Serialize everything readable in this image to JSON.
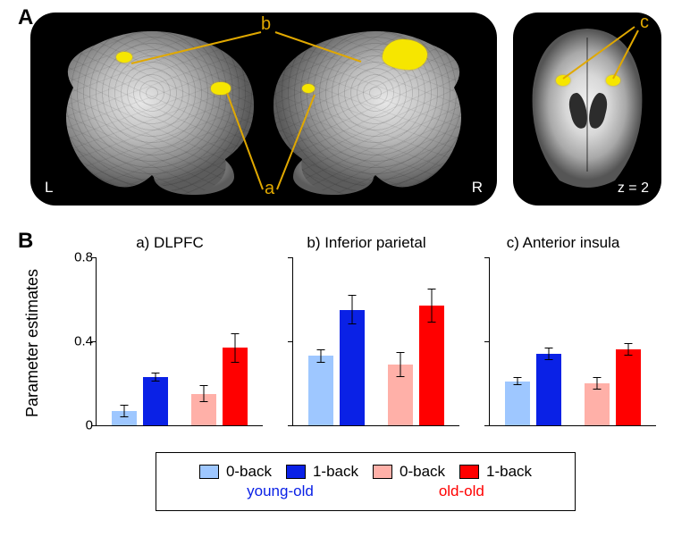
{
  "panelA": {
    "label": "A",
    "callouts": {
      "a": "a",
      "b": "b",
      "c": "c"
    },
    "hemis": {
      "left_letter": "L",
      "right_letter": "R"
    },
    "axial_label": "z = 2",
    "blob_color": "#f6e600",
    "line_color": "#e0a800"
  },
  "panelB": {
    "label": "B",
    "ylabel": "Parameter estimates",
    "ylim": [
      0,
      0.8
    ],
    "yticks": [
      0,
      0.4,
      0.8
    ],
    "bar_group_gap": 0.18,
    "fontsize_title": 17,
    "fontsize_axis": 18,
    "charts": [
      {
        "title": "a) DLPFC",
        "bars": [
          {
            "label": "0-back",
            "group": "young-old",
            "value": 0.07,
            "err": 0.03,
            "color": "#9ec7ff"
          },
          {
            "label": "1-back",
            "group": "young-old",
            "value": 0.23,
            "err": 0.02,
            "color": "#0a21e6"
          },
          {
            "label": "0-back",
            "group": "old-old",
            "value": 0.15,
            "err": 0.04,
            "color": "#ffb0a8"
          },
          {
            "label": "1-back",
            "group": "old-old",
            "value": 0.37,
            "err": 0.07,
            "color": "#ff0000"
          }
        ]
      },
      {
        "title": "b) Inferior parietal",
        "bars": [
          {
            "label": "0-back",
            "group": "young-old",
            "value": 0.33,
            "err": 0.03,
            "color": "#9ec7ff"
          },
          {
            "label": "1-back",
            "group": "young-old",
            "value": 0.55,
            "err": 0.07,
            "color": "#0a21e6"
          },
          {
            "label": "0-back",
            "group": "old-old",
            "value": 0.29,
            "err": 0.06,
            "color": "#ffb0a8"
          },
          {
            "label": "1-back",
            "group": "old-old",
            "value": 0.57,
            "err": 0.08,
            "color": "#ff0000"
          }
        ]
      },
      {
        "title": "c) Anterior insula",
        "bars": [
          {
            "label": "0-back",
            "group": "young-old",
            "value": 0.21,
            "err": 0.02,
            "color": "#9ec7ff"
          },
          {
            "label": "1-back",
            "group": "young-old",
            "value": 0.34,
            "err": 0.03,
            "color": "#0a21e6"
          },
          {
            "label": "0-back",
            "group": "old-old",
            "value": 0.2,
            "err": 0.03,
            "color": "#ffb0a8"
          },
          {
            "label": "1-back",
            "group": "old-old",
            "value": 0.36,
            "err": 0.03,
            "color": "#ff0000"
          }
        ]
      }
    ],
    "legend": {
      "items": [
        {
          "swatch": "#9ec7ff",
          "label": "0-back"
        },
        {
          "swatch": "#0a21e6",
          "label": "1-back"
        },
        {
          "swatch": "#ffb0a8",
          "label": "0-back"
        },
        {
          "swatch": "#ff0000",
          "label": "1-back"
        }
      ],
      "groups": [
        {
          "label": "young-old",
          "color": "#0a21e6"
        },
        {
          "label": "old-old",
          "color": "#ff0000"
        }
      ]
    }
  }
}
